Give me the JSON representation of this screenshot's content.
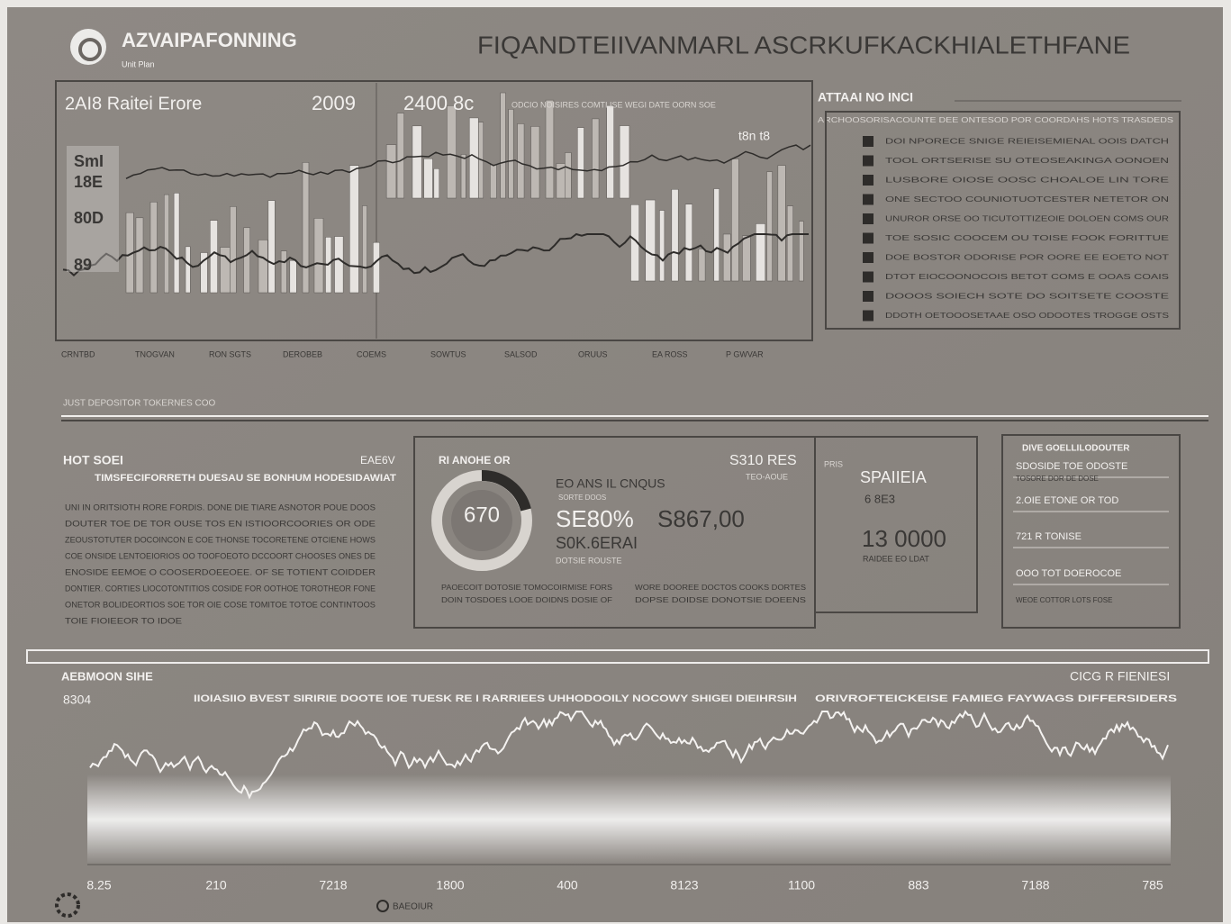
{
  "header": {
    "brand": "AZVAIPAFONNING",
    "brand_sub": "Unit Plan",
    "title": "FIQANDTEIIVANMARL ASCRKUFKACKHIALETHFANE"
  },
  "top_chart": {
    "title": "2AI8 Raitei Erore",
    "value_a": "2009",
    "value_b": "2400 8c",
    "caption": "ODCIO NOISIRES COMTI ISE WEGI DATE OORN SOE",
    "corner": "t8n t8",
    "labels": [
      "SmI",
      "18E",
      "80D",
      "89"
    ],
    "x_labels": [
      "CRNTBD",
      "TNOGVAN",
      "RON SGTS",
      "DEROBEB",
      "COEMS",
      "SOWTUS",
      "SALSOD",
      "ORUUS",
      "EA ROSS",
      "P GWVAR"
    ]
  },
  "side_panel": {
    "title": "ATTAAI NO INCI",
    "subtitle": "ARCHOOSORISACOUNTE DEE ONTESOD POR COORDAHS HOTS TRASDEDS",
    "items": [
      "DOI NPORECE SNIGE REIEISEMIENAL OOIS DATCH",
      "TOOL ORTSERISE SU OTEOSEAKINGA OONOEN",
      "LUSBORE OIOSE OOSC CHOALOE LIN TORE",
      "ONE SECTOO COUNIOTUOTCESTER NETETOR ON",
      "UNUROR ORSE OO TICUTOTTIZEOIE DOLOEN COMS OUR",
      "TOE SOSIC COOCEM OU TOISE FOOK FORITTUE",
      "DOE BOSTOR ODORISE POR OORE EE EOETO NOT",
      "DTOT EIOCOONOCOIS BETOT COMS E OOAS COAIS",
      "DOOOS SOIECH SOTE DO SOITSETE COOSTE",
      "DDOTH OETOOOSETAAE OSO ODOOTES TROGGE OSTS"
    ]
  },
  "section_label": "JUST DEPOSITOR TOKERNES COO",
  "summary": {
    "title": "HOT SOEI",
    "tag": "EAE6V",
    "subtitle": "TIMSFECIFORRETH DUESAU SE BONHUM HODESIDAWIAT",
    "body_lines": [
      "UNI IN ORITSIOTH RORE FORDIS. DONE DIE TIARE ASNOTOR POUE DOOS",
      "DOUTER TOE DE TOR OUSE TOS EN ISTIOORCOORIES OR ODE",
      "ZEOUSTOTUTER DOCOINCON E COE THONSE TOCORETENE OTCIENE HOWS",
      "COE ONSIDE LENTOEIORIOS OO TOOFOEOTO DCCOORT CHOOSES ONES DE",
      "ENOSIDE EEMOE O COOSERDOEEOEE. OF SE TOTIENT COIDDER",
      "DONTIER. CORTIES LIOCOTONTITIOS COSIDE FOR OOTHOE TOROTHEOR FONE",
      "ONETOR BOLIDEORTIOS SOE TOR OIE COSE TOMITOE TOTOE CONTINTOOS",
      "TOIE FIOIEEOR TO IDOE"
    ]
  },
  "gauge_panel": {
    "title": "RI ANOHE OR",
    "gauge_value": "670",
    "name": "EO ANS IL CNQUS",
    "name_sub": "SORTE DOOS",
    "value_1": "SE80%",
    "value_2": "S867,00",
    "value_3": "S0K.6ERAI",
    "note": "DOTSIE ROUSTE",
    "side_value": "S310 RES",
    "side_sub": "TEO-AOUE",
    "foot_left": [
      "PAOECOIT DOTOSIE TOMOCOIRMISE FORS",
      "DOIN TOSDOES LOOE DOIDNS DOSIE OF"
    ],
    "foot_right": [
      "WORE DOOREE DOCTOS COOKS DORTES",
      "DOPSE DOIDSE DONOTSIE DOEENS"
    ]
  },
  "stat_panel": {
    "tag": "PRIS",
    "label": "SPAIIEIA",
    "sub": "6 8E3",
    "value": "13 0000",
    "caption": "RAIDEE EO LDAT"
  },
  "list_panel": {
    "title": "DIVE GOELLILODOUTER",
    "rows": [
      "SDOSIDE TOE ODOSTE",
      "TOSORE DOR DE DOSE",
      "2.OIE  ETONE OR TOD",
      "721 R TONISE",
      "OOO  TOT  DOEROCOE",
      "WEOE COTTOR LOTS FOSE"
    ]
  },
  "bottom_chart": {
    "title": "AEBMOON SIHE",
    "value": "8304",
    "right_title": "CICG R FIENIESI",
    "headline": "IIOIASIIO BVEST SIRIRIE DOOTE IOE TUESK RE I RARRIEES UHHODOOILY NOCOWY SHIGEI DIEIHRSIH",
    "right_headline": "ORIVROFTEICKEISE FAMIEG FAYWAGS DIFFERSIDERS",
    "x_labels": [
      "8.25",
      "210",
      "7218",
      "1800",
      "400",
      "8123",
      "1100",
      "883",
      "7188",
      "785"
    ]
  },
  "footer": {
    "label": "BAEOIUR"
  }
}
